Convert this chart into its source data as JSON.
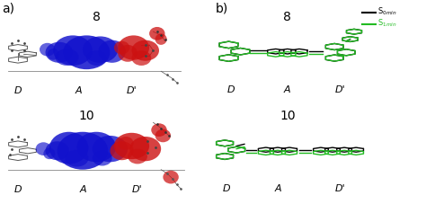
{
  "fig_width": 4.74,
  "fig_height": 2.28,
  "dpi": 100,
  "background_color": "#ffffff",
  "panel_a_label": "a)",
  "panel_b_label": "b)",
  "label_fontsize": 10,
  "number_fontsize": 9,
  "axis_label_fontsize": 8,
  "d_label_texts": [
    "D",
    "A",
    "D'"
  ],
  "green_color": "#22bb22",
  "black_color": "#000000",
  "red_color": "#cc1111",
  "blue_color": "#1111cc",
  "gray_color": "#666666",
  "light_gray": "#aaaaaa",
  "legend_s0_color": "#000000",
  "legend_s1_color": "#22bb22",
  "legend_s0_label": "S$_{0min}$",
  "legend_s1_label": "S$_{1min}$"
}
